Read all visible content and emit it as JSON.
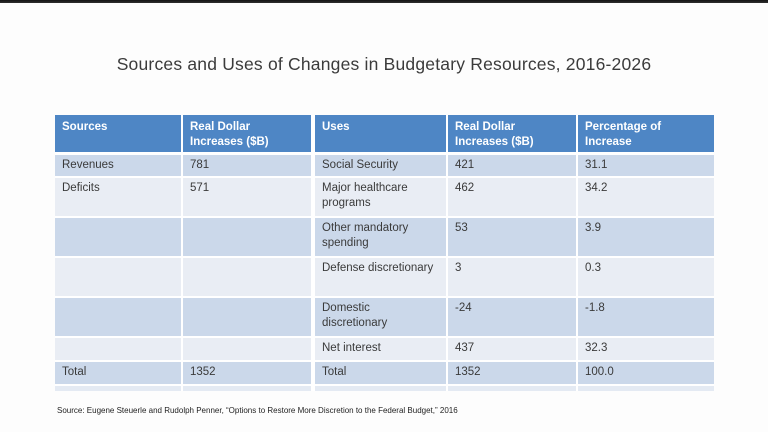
{
  "title": "Sources and Uses of Changes in Budgetary Resources, 2016-2026",
  "source_note": "Source:  Eugene Steuerle and Rudolph Penner, “Options to Restore More Discretion to the Federal Budget,” 2016",
  "colors": {
    "header_bg": "#4e86c5",
    "band_dark": "#cbd8ea",
    "band_light": "#e9edf4",
    "footer_strip": "#e4eaf3",
    "header_text": "#ffffff",
    "body_text": "#3a3a3a",
    "top_border": "#1e1e1e"
  },
  "table": {
    "headers": [
      "Sources",
      "Real Dollar Increases ($B)",
      "Uses",
      "Real Dollar Increases ($B)",
      "Percentage of Increase"
    ],
    "rows": [
      [
        "Revenues",
        "781",
        "Social Security",
        "421",
        "31.1"
      ],
      [
        "Deficits",
        "571",
        "Major healthcare programs",
        "462",
        "34.2"
      ],
      [
        "",
        "",
        "Other mandatory spending",
        "53",
        "3.9"
      ],
      [
        "",
        "",
        "Defense discretionary",
        "3",
        "0.3"
      ],
      [
        "",
        "",
        "Domestic discretionary",
        "-24",
        "-1.8"
      ],
      [
        "",
        "",
        "Net interest",
        "437",
        "32.3"
      ],
      [
        "Total",
        "1352",
        "Total",
        "1352",
        "100.0"
      ]
    ]
  },
  "chart_data": {
    "type": "table",
    "title": "Sources and Uses of Changes in Budgetary Resources, 2016-2026",
    "columns": [
      "Sources",
      "Real Dollar Increases ($B)",
      "Uses",
      "Real Dollar Increases ($B)",
      "Percentage of Increase"
    ],
    "sources": [
      {
        "name": "Revenues",
        "real_dollar_increase_b": 781
      },
      {
        "name": "Deficits",
        "real_dollar_increase_b": 571
      },
      {
        "name": "Total",
        "real_dollar_increase_b": 1352
      }
    ],
    "uses": [
      {
        "name": "Social Security",
        "real_dollar_increase_b": 421,
        "percentage_of_increase": 31.1
      },
      {
        "name": "Major healthcare programs",
        "real_dollar_increase_b": 462,
        "percentage_of_increase": 34.2
      },
      {
        "name": "Other mandatory spending",
        "real_dollar_increase_b": 53,
        "percentage_of_increase": 3.9
      },
      {
        "name": "Defense discretionary",
        "real_dollar_increase_b": 3,
        "percentage_of_increase": 0.3
      },
      {
        "name": "Domestic discretionary",
        "real_dollar_increase_b": -24,
        "percentage_of_increase": -1.8
      },
      {
        "name": "Net interest",
        "real_dollar_increase_b": 437,
        "percentage_of_increase": 32.3
      },
      {
        "name": "Total",
        "real_dollar_increase_b": 1352,
        "percentage_of_increase": 100.0
      }
    ]
  }
}
